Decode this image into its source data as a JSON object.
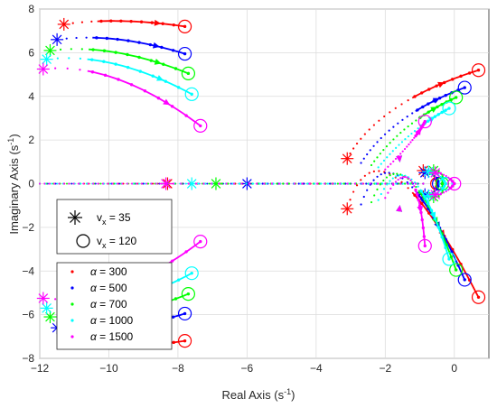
{
  "chart_data": {
    "type": "scatter",
    "title": "",
    "xlabel": "Real Axis (s",
    "ylabel": "Imaginary Axis (s",
    "axis_unit_sup": "-1",
    "xlim": [
      -12,
      1
    ],
    "ylim": [
      -8,
      8
    ],
    "xticks": [
      -12,
      -10,
      -8,
      -6,
      -4,
      -2,
      0
    ],
    "yticks": [
      -8,
      -6,
      -4,
      -2,
      0,
      2,
      4,
      6,
      8
    ],
    "grid": true,
    "legend_markers": {
      "placement": "middle-left",
      "entries": [
        {
          "marker": "asterisk",
          "label": "v",
          "sub": "x",
          "value_text": " = 35"
        },
        {
          "marker": "circle",
          "label": "v",
          "sub": "x",
          "value_text": " = 120"
        }
      ]
    },
    "legend_series": {
      "placement": "bottom-left",
      "entries": [
        {
          "symbol": "α",
          "value_text": " = 300"
        },
        {
          "symbol": "α",
          "value_text": " = 500"
        },
        {
          "symbol": "α",
          "value_text": " = 700"
        },
        {
          "symbol": "α",
          "value_text": " = 1000"
        },
        {
          "symbol": "α",
          "value_text": " = 1500"
        }
      ]
    },
    "series": [
      {
        "name": "α = 300",
        "color": "#ff0000",
        "start_upper": [
          -11.3,
          7.3
        ],
        "end_upper": [
          -7.8,
          7.2
        ],
        "start_right": [
          -3.1,
          1.15
        ],
        "end_right": [
          0.7,
          5.2
        ],
        "start_real": -8.3,
        "start_center": [
          -0.9,
          0.6
        ],
        "end_center": [
          -0.5,
          0
        ]
      },
      {
        "name": "α = 500",
        "color": "#0000ff",
        "start_upper": [
          -11.5,
          6.6
        ],
        "end_upper": [
          -7.8,
          5.95
        ],
        "start_right": [
          -2.7,
          0.95
        ],
        "end_right": [
          0.3,
          4.4
        ],
        "start_real": -6.0,
        "start_center": [
          -0.85,
          0.5
        ],
        "end_center": [
          -0.45,
          0
        ]
      },
      {
        "name": "α = 700",
        "color": "#00ff00",
        "start_upper": [
          -11.7,
          6.1
        ],
        "end_upper": [
          -7.7,
          5.05
        ],
        "start_right": [
          -2.4,
          0.85
        ],
        "end_right": [
          0.05,
          3.95
        ],
        "start_real": -6.9,
        "start_center": [
          -0.6,
          0.6
        ],
        "end_center": [
          -0.35,
          0
        ]
      },
      {
        "name": "α = 1000",
        "color": "#00ffff",
        "start_upper": [
          -11.8,
          5.7
        ],
        "end_upper": [
          -7.6,
          4.1
        ],
        "start_right": [
          -2.2,
          0.75
        ],
        "end_right": [
          -0.15,
          3.45
        ],
        "start_real": -7.6,
        "start_center": [
          -0.75,
          0.55
        ],
        "end_center": [
          -0.25,
          0
        ]
      },
      {
        "name": "α = 1500",
        "color": "#ff00ff",
        "start_upper": [
          -11.9,
          5.25
        ],
        "end_upper": [
          -7.35,
          2.65
        ],
        "start_right": [
          -2.0,
          0.65
        ],
        "end_right": [
          -0.85,
          2.85
        ],
        "start_real": -8.35,
        "start_center": [
          -0.55,
          0.5
        ],
        "end_center": [
          0.0,
          0
        ]
      }
    ]
  }
}
